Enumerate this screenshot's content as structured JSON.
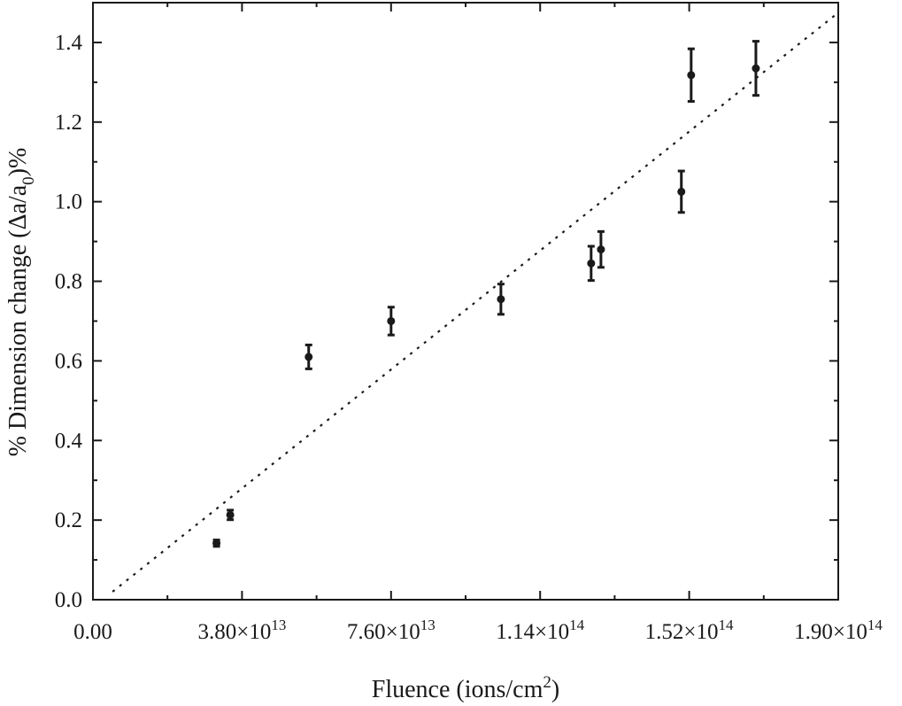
{
  "chart_data": {
    "type": "scatter",
    "xlabel": "Fluence (ions/cm",
    "xlabel_sup": "2",
    "xlabel_end": ")",
    "ylabel_prefix": "% Dimension change (Δa/a",
    "ylabel_sub": "0",
    "ylabel_suffix": ")%",
    "xlim": [
      0,
      190000000000000.0
    ],
    "ylim": [
      0,
      1.5
    ],
    "x_ticks": [
      {
        "value": 0,
        "mantissa": "0.00",
        "exponent": ""
      },
      {
        "value": 38000000000000.0,
        "mantissa": "3.80×10",
        "exponent": "13"
      },
      {
        "value": 76000000000000.0,
        "mantissa": "7.60×10",
        "exponent": "13"
      },
      {
        "value": 114000000000000.0,
        "mantissa": "1.14×10",
        "exponent": "14"
      },
      {
        "value": 152000000000000.0,
        "mantissa": "1.52×10",
        "exponent": "14"
      },
      {
        "value": 190000000000000.0,
        "mantissa": "1.90×10",
        "exponent": "14"
      }
    ],
    "y_ticks": [
      {
        "value": 0.0,
        "label": "0.0"
      },
      {
        "value": 0.2,
        "label": "0.2"
      },
      {
        "value": 0.4,
        "label": "0.4"
      },
      {
        "value": 0.6,
        "label": "0.6"
      },
      {
        "value": 0.8,
        "label": "0.8"
      },
      {
        "value": 1.0,
        "label": "1.0"
      },
      {
        "value": 1.2,
        "label": "1.2"
      },
      {
        "value": 1.4,
        "label": "1.4"
      }
    ],
    "series": [
      {
        "points": [
          {
            "x": 31500000000000.0,
            "y": 0.142,
            "err": 0.008
          },
          {
            "x": 35000000000000.0,
            "y": 0.213,
            "err": 0.012
          },
          {
            "x": 55000000000000.0,
            "y": 0.61,
            "err": 0.03
          },
          {
            "x": 76000000000000.0,
            "y": 0.7,
            "err": 0.035
          },
          {
            "x": 104000000000000.0,
            "y": 0.755,
            "err": 0.038
          },
          {
            "x": 127000000000000.0,
            "y": 0.845,
            "err": 0.043
          },
          {
            "x": 129500000000000.0,
            "y": 0.88,
            "err": 0.045
          },
          {
            "x": 150000000000000.0,
            "y": 1.025,
            "err": 0.052
          },
          {
            "x": 152500000000000.0,
            "y": 1.318,
            "err": 0.066
          },
          {
            "x": 169000000000000.0,
            "y": 1.335,
            "err": 0.068
          }
        ]
      }
    ],
    "fit_line": {
      "x": [
        5000000000000.0,
        190000000000000.0
      ],
      "y": [
        0.02,
        1.475
      ],
      "style": "dotted"
    },
    "grid": false
  }
}
